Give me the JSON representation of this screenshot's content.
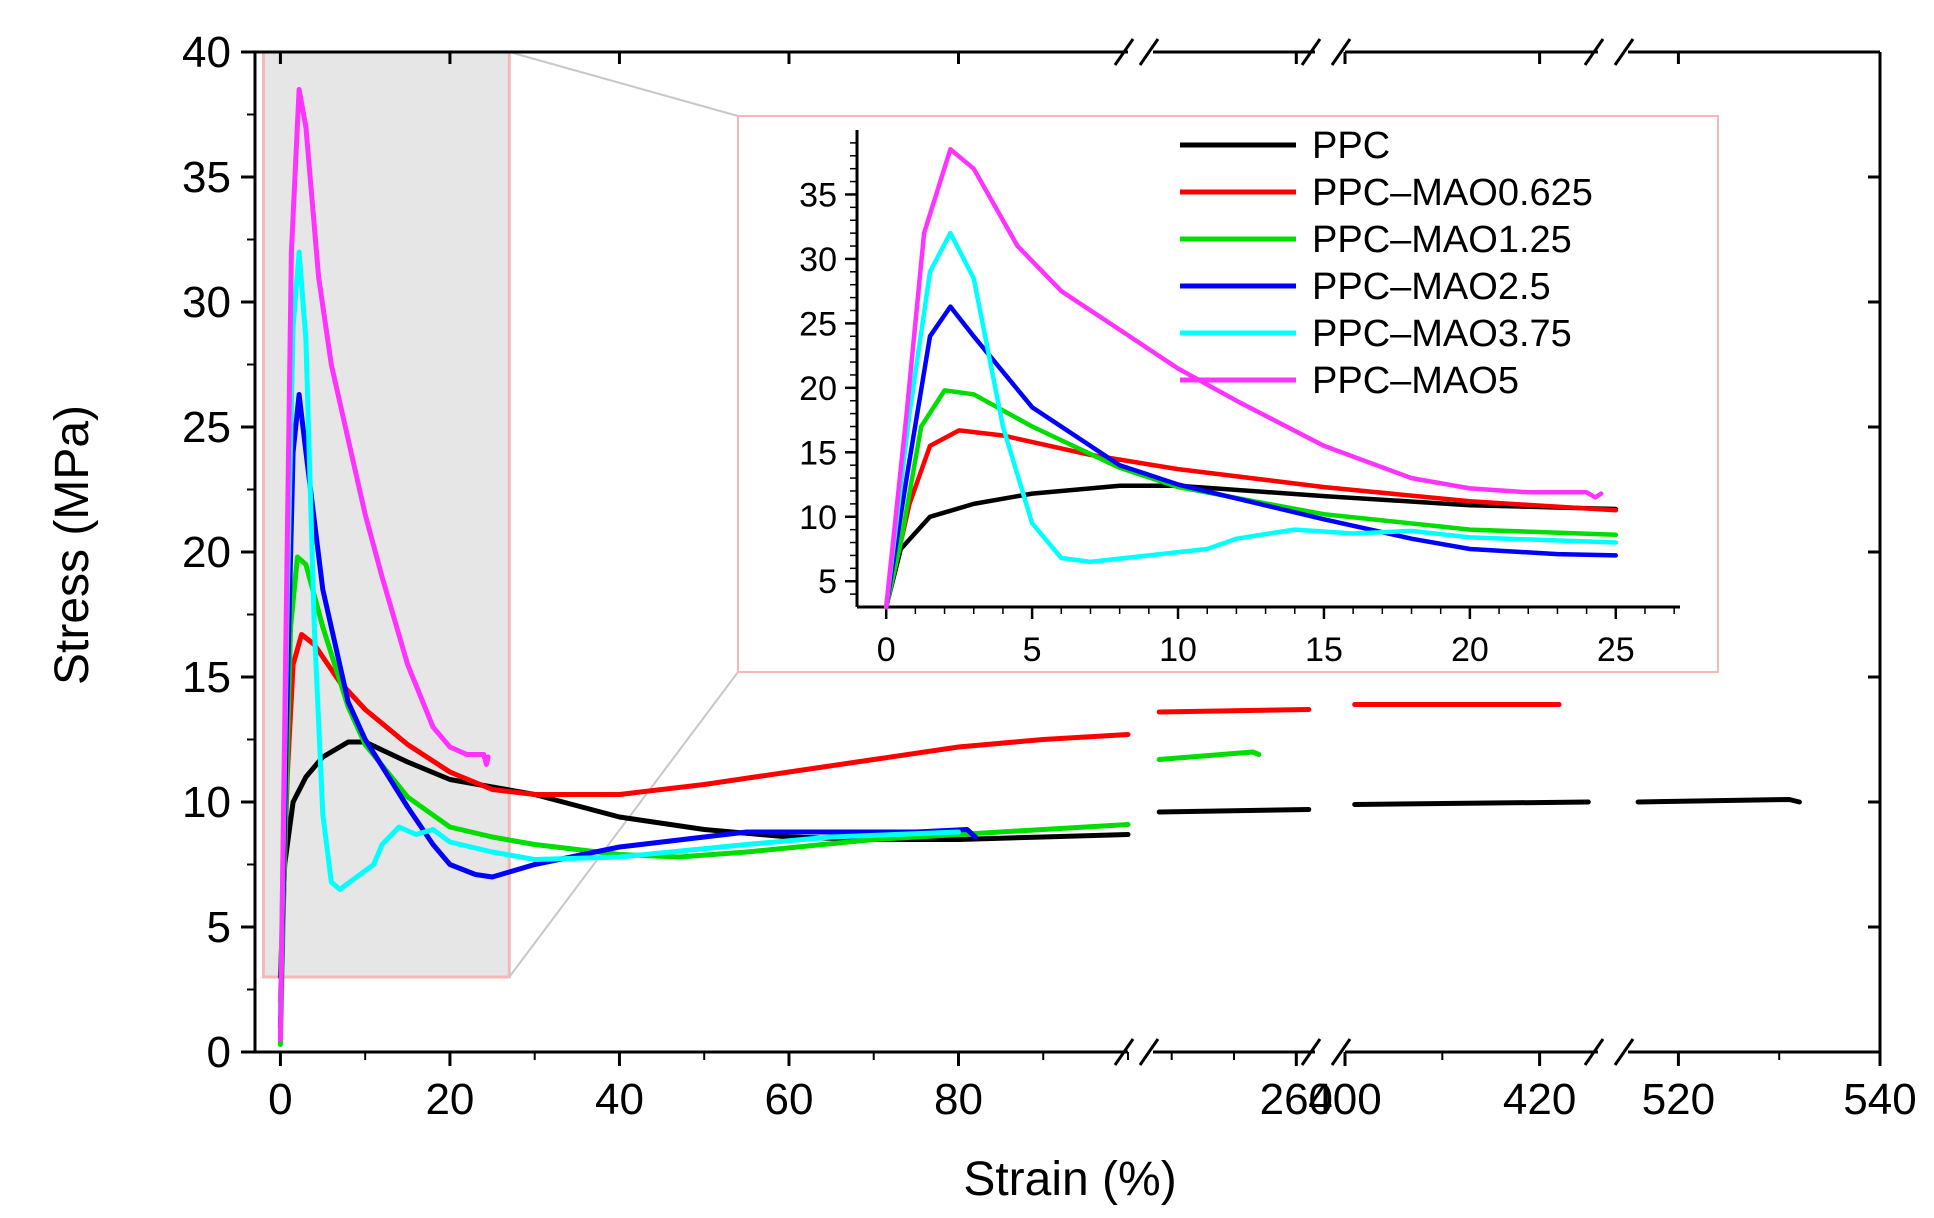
{
  "chart_data": {
    "type": "line",
    "xlabel": "Strain (%)",
    "ylabel": "Stress (MPa)",
    "x_axis_segments": [
      {
        "xlim": [
          -3,
          100
        ],
        "ticks": [
          0,
          20,
          40,
          60,
          80
        ],
        "tick_labels": [
          "0",
          "20",
          "40",
          "60",
          "80"
        ]
      },
      {
        "xlim": [
          237,
          263
        ],
        "ticks": [
          260
        ],
        "tick_labels": [
          "260"
        ]
      },
      {
        "xlim": [
          400,
          426
        ],
        "ticks": [
          400,
          420
        ],
        "tick_labels": [
          "400",
          "420"
        ]
      },
      {
        "xlim": [
          515,
          540
        ],
        "ticks": [
          520,
          540
        ],
        "tick_labels": [
          "520",
          "540"
        ]
      }
    ],
    "ylim": [
      0,
      40
    ],
    "yticks": [
      0,
      5,
      10,
      15,
      20,
      25,
      30,
      35,
      40
    ],
    "ytick_labels": [
      "0",
      "5",
      "10",
      "15",
      "20",
      "25",
      "30",
      "35",
      "40"
    ],
    "axis_break_marks": "//",
    "zoom_region": {
      "xlim": [
        -2,
        27
      ],
      "ylim": [
        3,
        40
      ],
      "fill": "#e6e6e6",
      "border": "#f4b8b8"
    },
    "inset": {
      "xlim": [
        -1,
        27.2
      ],
      "ylim": [
        3,
        40
      ],
      "xticks": [
        0,
        5,
        10,
        15,
        20,
        25
      ],
      "xtick_labels": [
        "0",
        "5",
        "10",
        "15",
        "20",
        "25"
      ],
      "yticks": [
        5,
        10,
        15,
        20,
        25,
        30,
        35
      ],
      "ytick_labels": [
        "5",
        "10",
        "15",
        "20",
        "25",
        "30",
        "35"
      ]
    },
    "legend": {
      "placement": "top-right inside inset"
    },
    "series": [
      {
        "name": "PPC",
        "color": "#000000",
        "segments": [
          [
            [
              0,
              3
            ],
            [
              0.5,
              7.5
            ],
            [
              1.5,
              10
            ],
            [
              3,
              11
            ],
            [
              5,
              11.8
            ],
            [
              8,
              12.4
            ],
            [
              10,
              12.4
            ],
            [
              15,
              11.6
            ],
            [
              20,
              10.9
            ],
            [
              25,
              10.6
            ],
            [
              30,
              10.3
            ],
            [
              40,
              9.4
            ],
            [
              50,
              8.9
            ],
            [
              60,
              8.6
            ],
            [
              70,
              8.5
            ],
            [
              80,
              8.5
            ],
            [
              90,
              8.6
            ],
            [
              100,
              8.7
            ]
          ],
          [
            [
              238,
              9.6
            ],
            [
              262,
              9.7
            ]
          ],
          [
            [
              401,
              9.9
            ],
            [
              425,
              10.0
            ]
          ],
          [
            [
              516,
              10.0
            ],
            [
              531,
              10.1
            ],
            [
              532,
              10.0
            ]
          ]
        ]
      },
      {
        "name": "PPC–MAO0.625",
        "color": "#ff0000",
        "segments": [
          [
            [
              0,
              2
            ],
            [
              0.8,
              11
            ],
            [
              1.5,
              15.5
            ],
            [
              2.5,
              16.7
            ],
            [
              4,
              16.3
            ],
            [
              7,
              14.8
            ],
            [
              10,
              13.7
            ],
            [
              15,
              12.3
            ],
            [
              20,
              11.2
            ],
            [
              25,
              10.5
            ],
            [
              30,
              10.3
            ],
            [
              40,
              10.3
            ],
            [
              50,
              10.7
            ],
            [
              60,
              11.2
            ],
            [
              70,
              11.7
            ],
            [
              80,
              12.2
            ],
            [
              90,
              12.5
            ],
            [
              100,
              12.7
            ]
          ],
          [
            [
              238,
              13.6
            ],
            [
              262,
              13.7
            ]
          ],
          [
            [
              401,
              13.9
            ],
            [
              422,
              13.9
            ]
          ]
        ]
      },
      {
        "name": "PPC–MAO1.25",
        "color": "#00dd00",
        "segments": [
          [
            [
              0,
              0.3
            ],
            [
              0.5,
              8
            ],
            [
              1.2,
              17
            ],
            [
              2,
              19.8
            ],
            [
              3,
              19.5
            ],
            [
              5,
              17
            ],
            [
              8,
              13.8
            ],
            [
              10,
              12.3
            ],
            [
              15,
              10.2
            ],
            [
              20,
              9.0
            ],
            [
              25,
              8.6
            ],
            [
              30,
              8.3
            ],
            [
              40,
              7.9
            ],
            [
              47,
              7.8
            ],
            [
              55,
              8.0
            ],
            [
              70,
              8.5
            ],
            [
              80,
              8.7
            ],
            [
              90,
              8.9
            ],
            [
              100,
              9.1
            ]
          ],
          [
            [
              238,
              11.7
            ],
            [
              253,
              12.0
            ],
            [
              254,
              11.9
            ]
          ]
        ]
      },
      {
        "name": "PPC–MAO2.5",
        "color": "#0000ff",
        "segments": [
          [
            [
              0,
              1
            ],
            [
              0.7,
              13
            ],
            [
              1.5,
              24
            ],
            [
              2.2,
              26.3
            ],
            [
              3,
              24
            ],
            [
              5,
              18.5
            ],
            [
              8,
              14
            ],
            [
              10,
              12.5
            ],
            [
              15,
              9.8
            ],
            [
              18,
              8.3
            ],
            [
              20,
              7.5
            ],
            [
              23,
              7.1
            ],
            [
              25,
              7.0
            ],
            [
              30,
              7.5
            ],
            [
              40,
              8.2
            ],
            [
              55,
              8.8
            ],
            [
              65,
              8.8
            ],
            [
              75,
              8.8
            ],
            [
              81,
              8.9
            ],
            [
              82,
              8.6
            ]
          ]
        ]
      },
      {
        "name": "PPC–MAO3.75",
        "color": "#00ffff",
        "segments": [
          [
            [
              0,
              1.5
            ],
            [
              0.8,
              18
            ],
            [
              1.5,
              29
            ],
            [
              2.2,
              32
            ],
            [
              3,
              28.5
            ],
            [
              4,
              17
            ],
            [
              5,
              9.5
            ],
            [
              6,
              6.8
            ],
            [
              7,
              6.5
            ],
            [
              9,
              7.0
            ],
            [
              11,
              7.5
            ],
            [
              12,
              8.3
            ],
            [
              14,
              9.0
            ],
            [
              16,
              8.7
            ],
            [
              18,
              8.9
            ],
            [
              20,
              8.4
            ],
            [
              25,
              8.0
            ],
            [
              30,
              7.7
            ],
            [
              40,
              7.8
            ],
            [
              55,
              8.3
            ],
            [
              65,
              8.6
            ],
            [
              80,
              8.8
            ]
          ]
        ]
      },
      {
        "name": "PPC–MAO5",
        "color": "#ff33ff",
        "segments": [
          [
            [
              0,
              0.5
            ],
            [
              0.7,
              18
            ],
            [
              1.3,
              32
            ],
            [
              2.2,
              38.5
            ],
            [
              3,
              37
            ],
            [
              4.5,
              31
            ],
            [
              6,
              27.5
            ],
            [
              8,
              24.5
            ],
            [
              10,
              21.5
            ],
            [
              12,
              19
            ],
            [
              15,
              15.5
            ],
            [
              18,
              13
            ],
            [
              20,
              12.2
            ],
            [
              22,
              11.9
            ],
            [
              24,
              11.9
            ],
            [
              24.3,
              11.5
            ],
            [
              24.5,
              11.8
            ]
          ]
        ]
      }
    ]
  }
}
